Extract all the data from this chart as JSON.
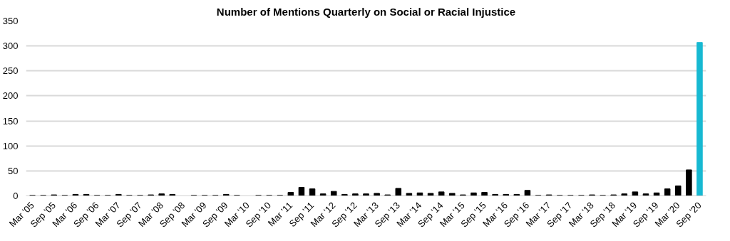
{
  "chart_data": {
    "type": "bar",
    "title": "Number of Mentions Quarterly on Social or Racial Injustice",
    "categories": [
      "Mar '05",
      null,
      "Sep '05",
      null,
      "Mar '06",
      null,
      "Sep '06",
      null,
      "Mar '07",
      null,
      "Sep '07",
      null,
      "Mar '08",
      null,
      "Sep '08",
      null,
      "Mar '09",
      null,
      "Sep '09",
      null,
      "Mar '10",
      null,
      "Sep '10",
      null,
      "Mar '11",
      null,
      "Sep '11",
      null,
      "Mar '12",
      null,
      "Sep '12",
      null,
      "Mar '13",
      null,
      "Sep '13",
      null,
      "Mar '14",
      null,
      "Sep '14",
      null,
      "Mar '15",
      null,
      "Sep '15",
      null,
      "Mar '16",
      null,
      "Sep '16",
      null,
      "Mar '17",
      null,
      "Sep '17",
      null,
      "Mar '18",
      null,
      "Sep '18",
      null,
      "Mar '19",
      null,
      "Sep '19",
      null,
      "Mar '20",
      null,
      "Sep '20"
    ],
    "values": [
      1,
      1,
      2,
      1,
      3,
      3,
      1,
      1,
      3,
      1,
      1,
      2,
      4,
      3,
      0,
      1,
      1,
      1,
      3,
      1,
      0,
      1,
      1,
      1,
      7,
      17,
      14,
      4,
      9,
      3,
      4,
      4,
      5,
      2,
      15,
      5,
      6,
      5,
      8,
      5,
      2,
      6,
      7,
      3,
      3,
      3,
      11,
      1,
      2,
      1,
      1,
      1,
      2,
      1,
      2,
      4,
      8,
      4,
      6,
      14,
      20,
      52,
      307
    ],
    "colors": [
      "#000000",
      "#000000",
      "#000000",
      "#000000",
      "#000000",
      "#000000",
      "#000000",
      "#000000",
      "#000000",
      "#000000",
      "#000000",
      "#000000",
      "#000000",
      "#000000",
      "#000000",
      "#000000",
      "#000000",
      "#000000",
      "#000000",
      "#000000",
      "#000000",
      "#000000",
      "#000000",
      "#000000",
      "#000000",
      "#000000",
      "#000000",
      "#000000",
      "#000000",
      "#000000",
      "#000000",
      "#000000",
      "#000000",
      "#000000",
      "#000000",
      "#000000",
      "#000000",
      "#000000",
      "#000000",
      "#000000",
      "#000000",
      "#000000",
      "#000000",
      "#000000",
      "#000000",
      "#000000",
      "#000000",
      "#000000",
      "#000000",
      "#000000",
      "#000000",
      "#000000",
      "#000000",
      "#000000",
      "#000000",
      "#000000",
      "#000000",
      "#000000",
      "#000000",
      "#000000",
      "#000000",
      "#000000",
      "#17b9d2"
    ],
    "ylim": [
      0,
      350
    ],
    "yticks": [
      0,
      50,
      100,
      150,
      200,
      250,
      300,
      350
    ],
    "grid": "y"
  }
}
